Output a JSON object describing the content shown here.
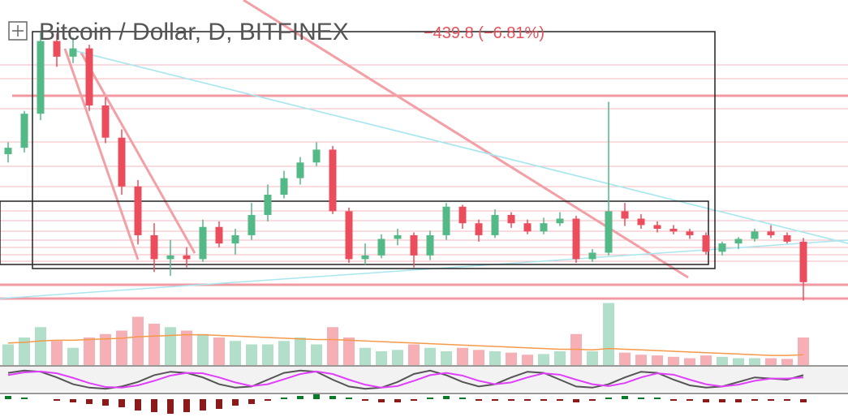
{
  "chart_data": {
    "type": "candlestick",
    "title": "Bitcoin / Dollar, D, BITFINEX",
    "change_label": "−439.8 (−6.81%)",
    "up_color": "#53b987",
    "down_color": "#eb4d5c",
    "ylim": [
      5800,
      9000
    ],
    "ohlc": [
      [
        7430,
        7560,
        7340,
        7500
      ],
      [
        7500,
        7900,
        7450,
        7870
      ],
      [
        7870,
        8760,
        7800,
        8660
      ],
      [
        8660,
        8740,
        8380,
        8490
      ],
      [
        8490,
        8700,
        8420,
        8580
      ],
      [
        8580,
        8620,
        7900,
        7960
      ],
      [
        7960,
        8050,
        7550,
        7610
      ],
      [
        7610,
        7700,
        6990,
        7080
      ],
      [
        7080,
        7150,
        6450,
        6550
      ],
      [
        6550,
        6680,
        6150,
        6290
      ],
      [
        6290,
        6500,
        6110,
        6330
      ],
      [
        6330,
        6420,
        6200,
        6290
      ],
      [
        6290,
        6720,
        6260,
        6640
      ],
      [
        6640,
        6700,
        6420,
        6460
      ],
      [
        6460,
        6620,
        6340,
        6550
      ],
      [
        6550,
        6900,
        6500,
        6770
      ],
      [
        6770,
        7100,
        6700,
        6990
      ],
      [
        6990,
        7250,
        6950,
        7170
      ],
      [
        7170,
        7400,
        7100,
        7340
      ],
      [
        7340,
        7560,
        7300,
        7480
      ],
      [
        7480,
        7520,
        6780,
        6810
      ],
      [
        6810,
        6850,
        6250,
        6290
      ],
      [
        6290,
        6460,
        6230,
        6330
      ],
      [
        6330,
        6560,
        6300,
        6510
      ],
      [
        6510,
        6620,
        6440,
        6550
      ],
      [
        6550,
        6580,
        6200,
        6330
      ],
      [
        6330,
        6600,
        6280,
        6550
      ],
      [
        6550,
        6900,
        6500,
        6860
      ],
      [
        6860,
        6880,
        6620,
        6680
      ],
      [
        6680,
        6720,
        6480,
        6550
      ],
      [
        6550,
        6830,
        6520,
        6770
      ],
      [
        6770,
        6800,
        6630,
        6680
      ],
      [
        6680,
        6720,
        6560,
        6590
      ],
      [
        6590,
        6740,
        6560,
        6680
      ],
      [
        6680,
        6800,
        6650,
        6730
      ],
      [
        6730,
        6760,
        6250,
        6290
      ],
      [
        6290,
        6400,
        6260,
        6360
      ],
      [
        6360,
        8000,
        6330,
        6810
      ],
      [
        6810,
        6900,
        6650,
        6730
      ],
      [
        6730,
        6780,
        6620,
        6660
      ],
      [
        6660,
        6700,
        6580,
        6620
      ],
      [
        6620,
        6660,
        6560,
        6590
      ],
      [
        6590,
        6620,
        6510,
        6550
      ],
      [
        6550,
        6580,
        6340,
        6370
      ],
      [
        6370,
        6480,
        6330,
        6460
      ],
      [
        6460,
        6530,
        6400,
        6510
      ],
      [
        6510,
        6620,
        6480,
        6590
      ],
      [
        6590,
        6660,
        6520,
        6550
      ],
      [
        6550,
        6580,
        6460,
        6480
      ],
      [
        6480,
        6520,
        5840,
        6040
      ]
    ],
    "volume_ylim": [
      0,
      100
    ],
    "volume": [
      30,
      40,
      55,
      35,
      25,
      40,
      45,
      50,
      70,
      60,
      55,
      50,
      45,
      40,
      35,
      30,
      30,
      35,
      40,
      30,
      55,
      40,
      25,
      20,
      22,
      30,
      25,
      20,
      25,
      22,
      20,
      18,
      15,
      16,
      20,
      45,
      20,
      90,
      18,
      15,
      14,
      12,
      10,
      14,
      12,
      10,
      10,
      10,
      9,
      40
    ],
    "volume_ma_color": "#f59a4a",
    "volume_ma": [
      32,
      33,
      35,
      36,
      36,
      37,
      38,
      39,
      41,
      42,
      43,
      44,
      44,
      43,
      42,
      41,
      40,
      39,
      38,
      37,
      37,
      36,
      35,
      34,
      33,
      32,
      31,
      30,
      29,
      28,
      27,
      26,
      25,
      24,
      23,
      23,
      22,
      24,
      23,
      22,
      21,
      20,
      19,
      18,
      17,
      16,
      15,
      14,
      14,
      15
    ],
    "stoch_ylim": [
      0,
      100
    ],
    "stoch": [
      {
        "color": "#555555",
        "values": [
          80,
          90,
          85,
          60,
          30,
          15,
          10,
          20,
          40,
          70,
          85,
          80,
          60,
          30,
          15,
          20,
          50,
          80,
          90,
          85,
          50,
          20,
          10,
          15,
          40,
          75,
          90,
          70,
          40,
          20,
          30,
          60,
          85,
          80,
          50,
          20,
          15,
          30,
          60,
          85,
          80,
          50,
          25,
          15,
          20,
          40,
          60,
          55,
          50,
          70
        ]
      },
      {
        "color": "#e040fb",
        "values": [
          70,
          82,
          86,
          78,
          58,
          35,
          18,
          15,
          25,
          45,
          68,
          80,
          78,
          60,
          38,
          22,
          30,
          52,
          75,
          86,
          75,
          50,
          28,
          15,
          22,
          45,
          70,
          80,
          68,
          45,
          30,
          38,
          60,
          78,
          72,
          50,
          30,
          22,
          35,
          60,
          78,
          72,
          50,
          30,
          20,
          28,
          45,
          55,
          55,
          60
        ]
      }
    ],
    "macd_ylim": [
      -10,
      4
    ],
    "macd_up_color": "#0b7a2a",
    "macd_down_color": "#8b1a1a",
    "macd": [
      2,
      1,
      0,
      -1,
      -2,
      -3,
      -4,
      -5,
      -7,
      -8,
      -9,
      -8,
      -7,
      -6,
      -4,
      -3,
      -1,
      1,
      2,
      3,
      2,
      1,
      -1,
      -2,
      -2,
      -1,
      1,
      2,
      1,
      -1,
      -1,
      -1,
      -1,
      -1,
      -1,
      -2,
      -1,
      1,
      2,
      1,
      1,
      -1,
      -1,
      -2,
      -2,
      -2,
      -1,
      -1,
      -1,
      -2
    ]
  }
}
